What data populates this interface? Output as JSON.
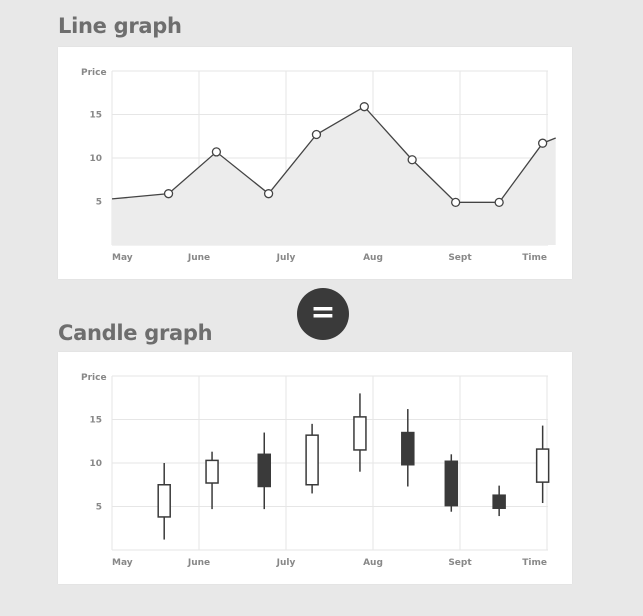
{
  "titles": {
    "line": "Line graph",
    "candle": "Candle graph"
  },
  "equals_symbol": "=",
  "colors": {
    "line": "#444444",
    "area": "#ececec",
    "grid": "#e6e6e6",
    "candle_dark": "#3a3a3a",
    "candle_light": "#ffffff"
  },
  "chart_data": [
    {
      "type": "area",
      "title": "Line graph",
      "ylabel": "Price",
      "xlabel": "",
      "x_ticks": [
        "May",
        "June",
        "July",
        "Aug",
        "Sept",
        "Time"
      ],
      "y_ticks": [
        5,
        10,
        15
      ],
      "ylim": [
        0,
        20
      ],
      "grid": true,
      "series": [
        {
          "points": [
            {
              "x": 0.0,
              "y": 5.3
            },
            {
              "x": 0.65,
              "y": 5.9
            },
            {
              "x": 1.2,
              "y": 10.7
            },
            {
              "x": 1.8,
              "y": 5.9
            },
            {
              "x": 2.35,
              "y": 12.7
            },
            {
              "x": 2.9,
              "y": 15.9
            },
            {
              "x": 3.45,
              "y": 9.8
            },
            {
              "x": 3.95,
              "y": 4.9
            },
            {
              "x": 4.45,
              "y": 4.9
            },
            {
              "x": 4.95,
              "y": 11.7
            },
            {
              "x": 5.1,
              "y": 12.3
            }
          ],
          "markers": [
            false,
            true,
            true,
            true,
            true,
            true,
            true,
            true,
            true,
            true,
            false
          ]
        }
      ]
    },
    {
      "type": "candlestick",
      "title": "Candle graph",
      "ylabel": "Price",
      "xlabel": "",
      "x_ticks": [
        "May",
        "June",
        "July",
        "Aug",
        "Sept",
        "Time"
      ],
      "y_ticks": [
        5,
        10,
        15
      ],
      "ylim": [
        0,
        20
      ],
      "grid": true,
      "candles": [
        {
          "x": 0.6,
          "open": 3.8,
          "close": 7.5,
          "high": 10.0,
          "low": 1.2,
          "direction": "up"
        },
        {
          "x": 1.15,
          "open": 7.7,
          "close": 10.3,
          "high": 11.3,
          "low": 4.7,
          "direction": "up"
        },
        {
          "x": 1.75,
          "open": 11.0,
          "close": 7.3,
          "high": 13.5,
          "low": 4.7,
          "direction": "down"
        },
        {
          "x": 2.3,
          "open": 7.5,
          "close": 13.2,
          "high": 14.5,
          "low": 6.5,
          "direction": "up"
        },
        {
          "x": 2.85,
          "open": 11.5,
          "close": 15.3,
          "high": 18.0,
          "low": 9.0,
          "direction": "up"
        },
        {
          "x": 3.4,
          "open": 13.5,
          "close": 9.8,
          "high": 16.2,
          "low": 7.3,
          "direction": "down"
        },
        {
          "x": 3.9,
          "open": 10.2,
          "close": 5.1,
          "high": 11.0,
          "low": 4.4,
          "direction": "down"
        },
        {
          "x": 4.45,
          "open": 6.3,
          "close": 4.8,
          "high": 7.4,
          "low": 3.9,
          "direction": "down"
        },
        {
          "x": 4.95,
          "open": 7.8,
          "close": 11.6,
          "high": 14.3,
          "low": 5.4,
          "direction": "up"
        }
      ]
    }
  ]
}
